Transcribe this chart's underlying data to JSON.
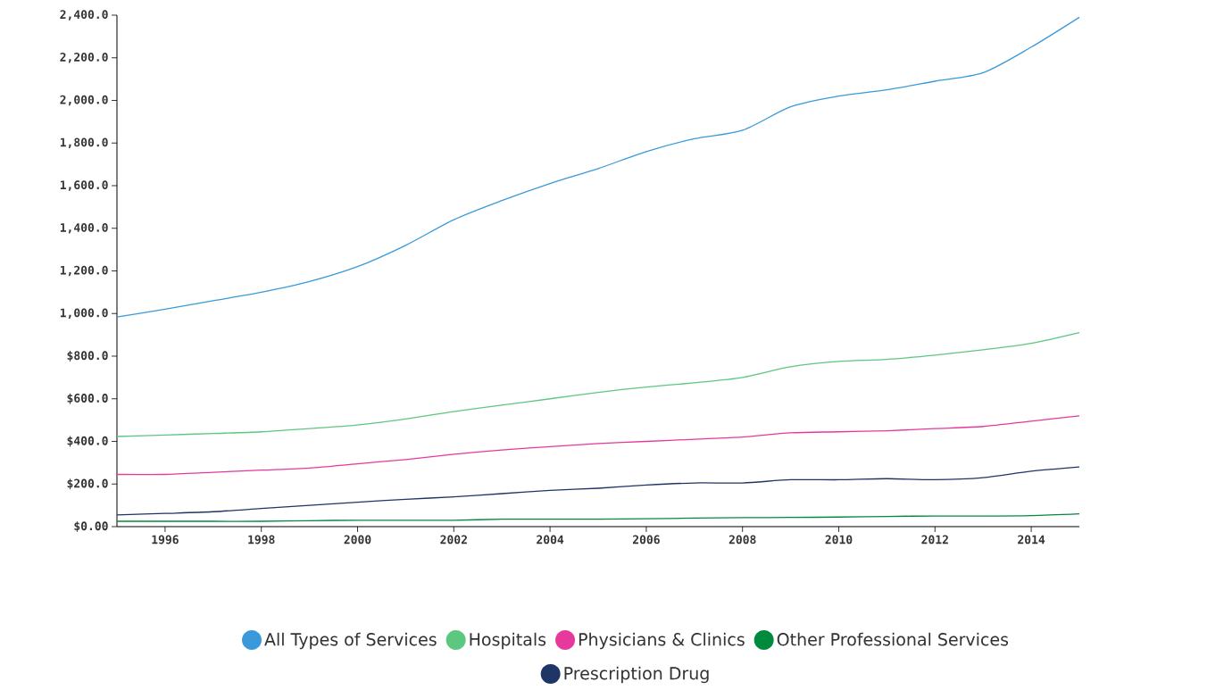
{
  "chart_data": {
    "type": "line",
    "x": [
      1995,
      1996,
      1997,
      1998,
      1999,
      2000,
      2001,
      2002,
      2003,
      2004,
      2005,
      2006,
      2007,
      2008,
      2009,
      2010,
      2011,
      2012,
      2013,
      2014,
      2015
    ],
    "series": [
      {
        "name": "All Types of Services",
        "color": "#3a9ad9",
        "values": [
          984,
          1020,
          1060,
          1100,
          1150,
          1220,
          1320,
          1440,
          1530,
          1610,
          1680,
          1760,
          1820,
          1860,
          1970,
          2020,
          2050,
          2090,
          2130,
          2250,
          2390
        ]
      },
      {
        "name": "Hospitals",
        "color": "#5cc77f",
        "values": [
          423,
          430,
          437,
          445,
          460,
          477,
          505,
          540,
          570,
          600,
          630,
          655,
          675,
          700,
          750,
          775,
          785,
          805,
          830,
          860,
          910
        ]
      },
      {
        "name": "Physicians & Clinics",
        "color": "#e6399b",
        "values": [
          245,
          245,
          255,
          265,
          275,
          295,
          315,
          340,
          360,
          375,
          390,
          400,
          410,
          420,
          440,
          445,
          450,
          460,
          470,
          495,
          520
        ]
      },
      {
        "name": "Other Professional Services",
        "color": "#008a3c",
        "values": [
          25,
          25,
          25,
          25,
          28,
          30,
          30,
          30,
          35,
          35,
          35,
          37,
          40,
          42,
          43,
          45,
          48,
          50,
          50,
          52,
          60
        ]
      },
      {
        "name": "Prescription Drug",
        "color": "#1f3566",
        "values": [
          55,
          62,
          70,
          85,
          100,
          115,
          128,
          140,
          155,
          170,
          180,
          195,
          205,
          205,
          220,
          220,
          225,
          220,
          230,
          260,
          280
        ]
      }
    ],
    "xlim": [
      1995,
      2015
    ],
    "xticks": [
      1996,
      1998,
      2000,
      2002,
      2004,
      2006,
      2008,
      2010,
      2012,
      2014
    ],
    "ylim": [
      0,
      2400
    ],
    "yticks": [
      {
        "value": 0,
        "label": "$0.00"
      },
      {
        "value": 200,
        "label": "$200.0"
      },
      {
        "value": 400,
        "label": "$400.0"
      },
      {
        "value": 600,
        "label": "$600.0"
      },
      {
        "value": 800,
        "label": "$800.0"
      },
      {
        "value": 1000,
        "label": "1,000.0"
      },
      {
        "value": 1200,
        "label": "1,200.0"
      },
      {
        "value": 1400,
        "label": "1,400.0"
      },
      {
        "value": 1600,
        "label": "1,600.0"
      },
      {
        "value": 1800,
        "label": "1,800.0"
      },
      {
        "value": 2000,
        "label": "2,000.0"
      },
      {
        "value": 2200,
        "label": "2,200.0"
      },
      {
        "value": 2400,
        "label": "2,400.0"
      }
    ],
    "grid": false,
    "legend": "bottom",
    "marker": "none",
    "line_style": "solid"
  }
}
